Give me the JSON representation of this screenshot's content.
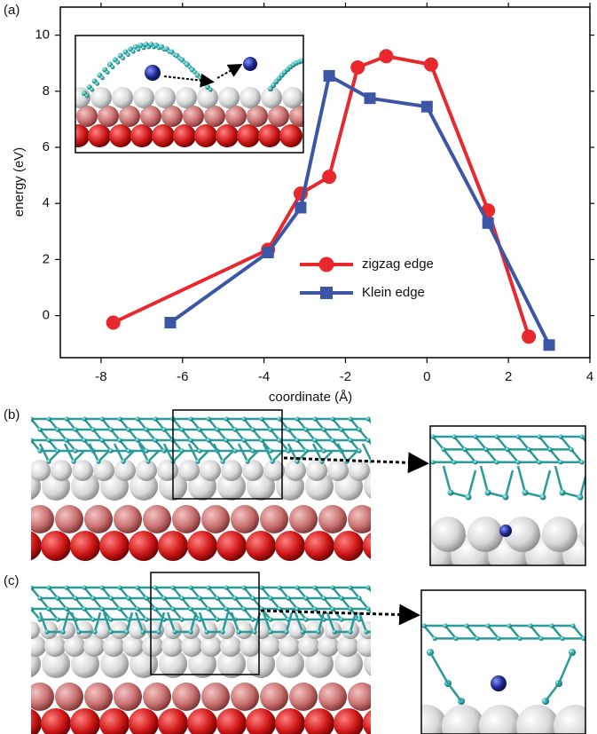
{
  "chart_data": {
    "type": "line",
    "panel_labels": [
      "(a)",
      "(b)",
      "(c)"
    ],
    "x_label": "coordinate (Å)",
    "y_label": "energy (eV)",
    "xlim": [
      -9,
      4
    ],
    "xticks": [
      -8,
      -6,
      -4,
      -2,
      0,
      2,
      4
    ],
    "ylim": [
      -1.5,
      11
    ],
    "yticks": [
      0,
      2,
      4,
      6,
      8,
      10
    ],
    "series": [
      {
        "name": "zigzag edge",
        "color": "#e8282d",
        "marker": "circle",
        "x": [
          -7.7,
          -3.9,
          -3.1,
          -2.4,
          -1.7,
          -1.0,
          0.1,
          1.5,
          2.5
        ],
        "values": [
          -0.25,
          2.35,
          4.35,
          4.95,
          8.85,
          9.25,
          8.95,
          3.75,
          -0.75
        ]
      },
      {
        "name": "Klein edge",
        "color": "#3c55a5",
        "marker": "square",
        "x": [
          -6.3,
          -3.9,
          -3.1,
          -2.4,
          -1.4,
          0.0,
          1.5,
          3.0
        ],
        "values": [
          -0.25,
          2.25,
          3.85,
          8.55,
          7.75,
          7.45,
          3.3,
          -1.05
        ]
      }
    ]
  }
}
